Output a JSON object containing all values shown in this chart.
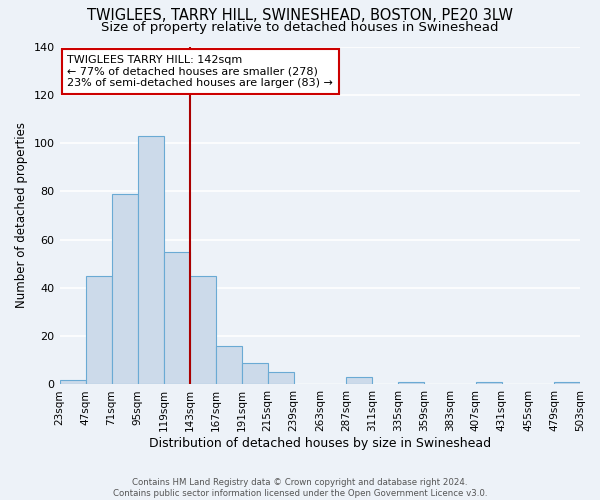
{
  "title": "TWIGLEES, TARRY HILL, SWINESHEAD, BOSTON, PE20 3LW",
  "subtitle": "Size of property relative to detached houses in Swineshead",
  "xlabel": "Distribution of detached houses by size in Swineshead",
  "ylabel": "Number of detached properties",
  "bar_color": "#ccdaea",
  "bar_edge_color": "#6aaad4",
  "bin_edges": [
    23,
    47,
    71,
    95,
    119,
    143,
    167,
    191,
    215,
    239,
    263,
    287,
    311,
    335,
    359,
    383,
    407,
    431,
    455,
    479,
    503
  ],
  "bar_heights": [
    2,
    45,
    79,
    103,
    55,
    45,
    16,
    9,
    5,
    0,
    0,
    3,
    0,
    1,
    0,
    0,
    1,
    0,
    0,
    1
  ],
  "tick_labels": [
    "23sqm",
    "47sqm",
    "71sqm",
    "95sqm",
    "119sqm",
    "143sqm",
    "167sqm",
    "191sqm",
    "215sqm",
    "239sqm",
    "263sqm",
    "287sqm",
    "311sqm",
    "335sqm",
    "359sqm",
    "383sqm",
    "407sqm",
    "431sqm",
    "455sqm",
    "479sqm",
    "503sqm"
  ],
  "vline_x": 143,
  "annotation_title": "TWIGLEES TARRY HILL: 142sqm",
  "annotation_line1": "← 77% of detached houses are smaller (278)",
  "annotation_line2": "23% of semi-detached houses are larger (83) →",
  "annotation_box_color": "#ffffff",
  "annotation_box_edge": "#cc0000",
  "vline_color": "#aa0000",
  "ylim": [
    0,
    140
  ],
  "yticks": [
    0,
    20,
    40,
    60,
    80,
    100,
    120,
    140
  ],
  "footer_line1": "Contains HM Land Registry data © Crown copyright and database right 2024.",
  "footer_line2": "Contains public sector information licensed under the Open Government Licence v3.0.",
  "background_color": "#edf2f8",
  "grid_color": "#ffffff",
  "title_fontsize": 10.5,
  "subtitle_fontsize": 9.5,
  "xlabel_fontsize": 9,
  "ylabel_fontsize": 8.5,
  "tick_fontsize": 7.5,
  "annot_fontsize": 8
}
